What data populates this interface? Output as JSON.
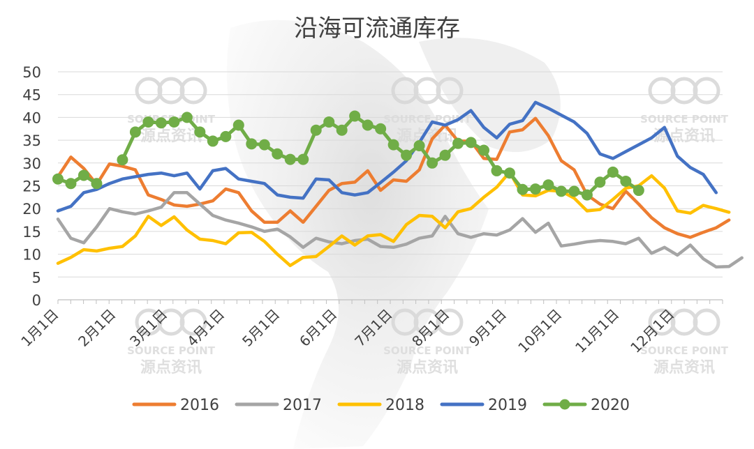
{
  "watermark": {
    "name_en": "SOURCE POINT",
    "name_cn": "源点资讯"
  },
  "chart_data": {
    "type": "line",
    "title": "沿海可流通库存",
    "xlabel": "",
    "ylabel": "",
    "ylim": [
      0,
      50
    ],
    "yticks": [
      0,
      5,
      10,
      15,
      20,
      25,
      30,
      35,
      40,
      45,
      50
    ],
    "xlim": [
      0,
      51.5
    ],
    "grid": "horizontal",
    "legend_position": "bottom",
    "x_tick_labels": [
      "1月1日",
      "2月1日",
      "3月1日",
      "4月1日",
      "5月1日",
      "6月1日",
      "7月1日",
      "8月1日",
      "9月1日",
      "10月1日",
      "11月1日",
      "12月1日"
    ],
    "x_tick_weeks": [
      0,
      4.43,
      8.43,
      12.86,
      17.14,
      21.57,
      25.86,
      30.29,
      34.71,
      39.0,
      43.43,
      47.71
    ],
    "series": [
      {
        "name": "2016",
        "color": "#ED7D31",
        "marker": false,
        "values": [
          27.0,
          31.3,
          28.8,
          25.3,
          29.8,
          29.3,
          28.5,
          23.0,
          22.0,
          20.8,
          20.5,
          21.0,
          21.7,
          24.3,
          23.5,
          19.5,
          17.0,
          17.0,
          19.5,
          17.0,
          20.5,
          24.0,
          25.5,
          25.8,
          28.3,
          24.0,
          26.3,
          26.0,
          28.5,
          35.3,
          38.3,
          34.8,
          34.8,
          31.0,
          30.8,
          36.8,
          37.3,
          39.8,
          36.0,
          30.5,
          28.5,
          23.0,
          21.0,
          20.0,
          23.8,
          21.0,
          18.0,
          15.8,
          14.5,
          13.7,
          14.8,
          15.8,
          17.5
        ]
      },
      {
        "name": "2017",
        "color": "#A5A5A5",
        "marker": false,
        "values": [
          17.7,
          13.5,
          12.5,
          16.0,
          20.0,
          19.3,
          18.8,
          19.5,
          20.3,
          23.5,
          23.5,
          21.0,
          18.5,
          17.5,
          16.8,
          16.0,
          15.0,
          15.5,
          13.8,
          11.5,
          13.5,
          12.7,
          12.3,
          13.0,
          13.3,
          11.7,
          11.5,
          12.2,
          13.5,
          14.0,
          18.3,
          14.5,
          13.7,
          14.5,
          14.2,
          15.3,
          17.8,
          14.8,
          16.8,
          11.8,
          12.2,
          12.7,
          13.0,
          12.8,
          12.3,
          13.5,
          10.2,
          11.5,
          9.8,
          12.0,
          9.0,
          7.2,
          7.3,
          9.2
        ]
      },
      {
        "name": "2018",
        "color": "#FFC000",
        "marker": false,
        "values": [
          8.0,
          9.3,
          11.0,
          10.7,
          11.3,
          11.7,
          14.0,
          18.3,
          16.3,
          18.2,
          15.3,
          13.3,
          13.0,
          12.3,
          14.7,
          14.8,
          12.8,
          10.0,
          7.5,
          9.3,
          9.5,
          11.7,
          14.0,
          12.0,
          14.0,
          14.3,
          12.8,
          16.5,
          18.5,
          18.3,
          15.8,
          19.3,
          20.0,
          22.5,
          24.7,
          28.0,
          23.0,
          22.8,
          24.0,
          23.8,
          22.3,
          19.5,
          19.8,
          22.0,
          24.5,
          25.0,
          27.2,
          24.5,
          19.5,
          19.0,
          20.7,
          20.0,
          19.2
        ]
      },
      {
        "name": "2019",
        "color": "#4472C4",
        "marker": false,
        "values": [
          19.5,
          20.5,
          23.5,
          24.2,
          25.5,
          26.5,
          27.0,
          27.5,
          27.8,
          27.2,
          27.8,
          24.3,
          28.3,
          28.8,
          26.5,
          26.0,
          25.5,
          23.0,
          22.5,
          22.3,
          26.5,
          26.3,
          23.5,
          23.0,
          23.5,
          25.7,
          28.0,
          30.5,
          34.5,
          39.0,
          38.3,
          39.5,
          41.5,
          37.8,
          35.5,
          38.5,
          39.3,
          43.3,
          42.0,
          40.5,
          39.0,
          36.5,
          32.0,
          31.0,
          32.5,
          34.0,
          35.5,
          37.8,
          31.5,
          29.0,
          27.5,
          23.5
        ]
      },
      {
        "name": "2020",
        "color": "#70AD47",
        "marker": true,
        "values": [
          26.5,
          25.5,
          27.3,
          25.5,
          null,
          30.7,
          36.8,
          39.0,
          38.8,
          39.0,
          40.0,
          36.8,
          34.8,
          35.8,
          38.3,
          34.2,
          34.0,
          32.0,
          30.8,
          30.8,
          37.2,
          39.0,
          37.2,
          40.3,
          38.3,
          37.5,
          34.0,
          31.7,
          33.8,
          30.0,
          31.7,
          34.3,
          34.5,
          32.8,
          28.3,
          27.8,
          24.2,
          24.3,
          25.2,
          23.8,
          23.8,
          23.0,
          25.8,
          28.0,
          26.0,
          24.0
        ]
      }
    ]
  }
}
